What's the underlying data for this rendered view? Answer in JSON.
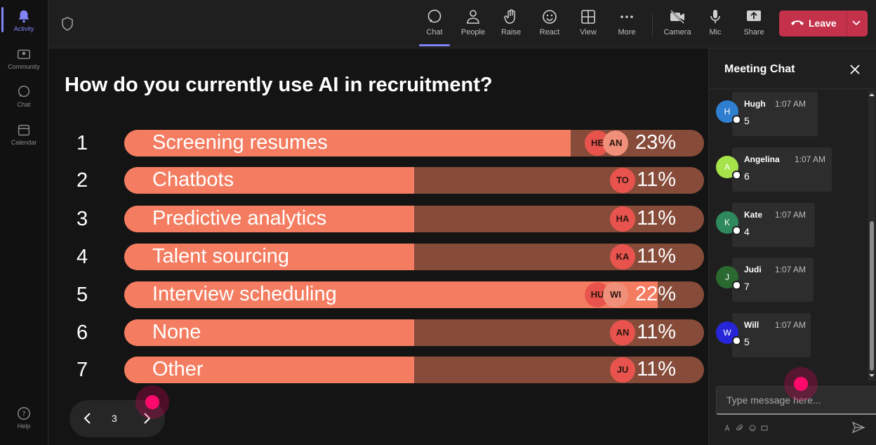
{
  "rail": {
    "items": [
      {
        "label": "Activity",
        "icon": "bell-icon",
        "active": true
      },
      {
        "label": "Community",
        "icon": "community-icon",
        "active": false
      },
      {
        "label": "Chat",
        "icon": "chat-icon",
        "active": false
      },
      {
        "label": "Calendar",
        "icon": "calendar-icon",
        "active": false
      }
    ],
    "help_label": "Help"
  },
  "toolbar": {
    "chat": "Chat",
    "people": "People",
    "raise": "Raise",
    "react": "React",
    "view": "View",
    "more": "More",
    "camera": "Camera",
    "mic": "Mic",
    "share": "Share",
    "leave": "Leave"
  },
  "poll": {
    "question": "How do you currently use AI in recruitment?",
    "options": [
      {
        "num": "1",
        "label": "Screening resumes",
        "percent": "23%",
        "fill": 0.77,
        "avatars": [
          "HE",
          "AN"
        ]
      },
      {
        "num": "2",
        "label": "Chatbots",
        "percent": "11%",
        "fill": 0.5,
        "avatars": [
          "TO"
        ]
      },
      {
        "num": "3",
        "label": "Predictive analytics",
        "percent": "11%",
        "fill": 0.5,
        "avatars": [
          "HA"
        ]
      },
      {
        "num": "4",
        "label": "Talent sourcing",
        "percent": "11%",
        "fill": 0.5,
        "avatars": [
          "KA"
        ]
      },
      {
        "num": "5",
        "label": "Interview scheduling",
        "percent": "22%",
        "fill": 0.92,
        "avatars": [
          "HU",
          "WI"
        ]
      },
      {
        "num": "6",
        "label": "None",
        "percent": "11%",
        "fill": 0.5,
        "avatars": [
          "AN"
        ]
      },
      {
        "num": "7",
        "label": "Other",
        "percent": "11%",
        "fill": 0.5,
        "avatars": [
          "JU"
        ]
      }
    ]
  },
  "pager": {
    "page": "3"
  },
  "chat": {
    "title": "Meeting Chat",
    "messages": [
      {
        "initial": "H",
        "name": "Hugh",
        "time": "1:07 AM",
        "text": "5",
        "color": "#2f7fd0"
      },
      {
        "initial": "A",
        "name": "Angelina",
        "time": "1:07 AM",
        "text": "6",
        "color": "#a6e34a"
      },
      {
        "initial": "K",
        "name": "Kate",
        "time": "1:07 AM",
        "text": "4",
        "color": "#2e8a5e"
      },
      {
        "initial": "J",
        "name": "Judi",
        "time": "1:07 AM",
        "text": "7",
        "color": "#2a6a30"
      },
      {
        "initial": "W",
        "name": "Will",
        "time": "1:07 AM",
        "text": "5",
        "color": "#2626d8"
      }
    ],
    "input_placeholder": "Type message here..."
  },
  "colors": {
    "accent": "#7f85f5",
    "bar_fill": "#f47d61",
    "bar_track": "#874b3a",
    "leave": "#c4314b",
    "cursor": "#ff0a6c"
  }
}
